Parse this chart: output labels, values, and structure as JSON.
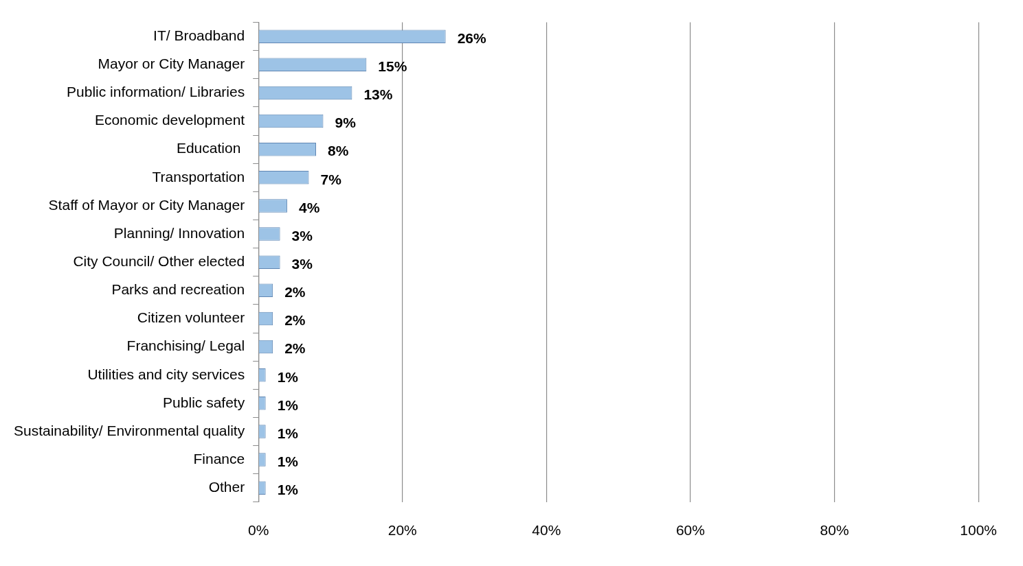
{
  "chart_data": {
    "type": "bar",
    "orientation": "horizontal",
    "categories": [
      "IT/ Broadband",
      "Mayor or City Manager",
      "Public information/ Libraries",
      "Economic development",
      "Education ",
      "Transportation",
      "Staff of Mayor or City Manager",
      "Planning/ Innovation",
      "City Council/ Other elected",
      "Parks and recreation",
      "Citizen volunteer",
      "Franchising/ Legal",
      "Utilities and city services",
      "Public safety",
      "Sustainability/ Environmental quality",
      "Finance",
      "Other"
    ],
    "values": [
      26,
      15,
      13,
      9,
      8,
      7,
      4,
      3,
      3,
      2,
      2,
      2,
      1,
      1,
      1,
      1,
      1
    ],
    "value_labels": [
      "26%",
      "15%",
      "13%",
      "9%",
      "8%",
      "7%",
      "4%",
      "3%",
      "3%",
      "2%",
      "2%",
      "2%",
      "1%",
      "1%",
      "1%",
      "1%",
      "1%"
    ],
    "color": "#9dc3e6",
    "xlim": [
      0,
      100
    ],
    "xticks": [
      {
        "value": 0,
        "label": "0%"
      },
      {
        "value": 20,
        "label": "20%"
      },
      {
        "value": 40,
        "label": "40%"
      },
      {
        "value": 60,
        "label": "60%"
      },
      {
        "value": 80,
        "label": "80%"
      },
      {
        "value": 100,
        "label": "100%"
      }
    ],
    "grid": "x",
    "legend": false
  }
}
